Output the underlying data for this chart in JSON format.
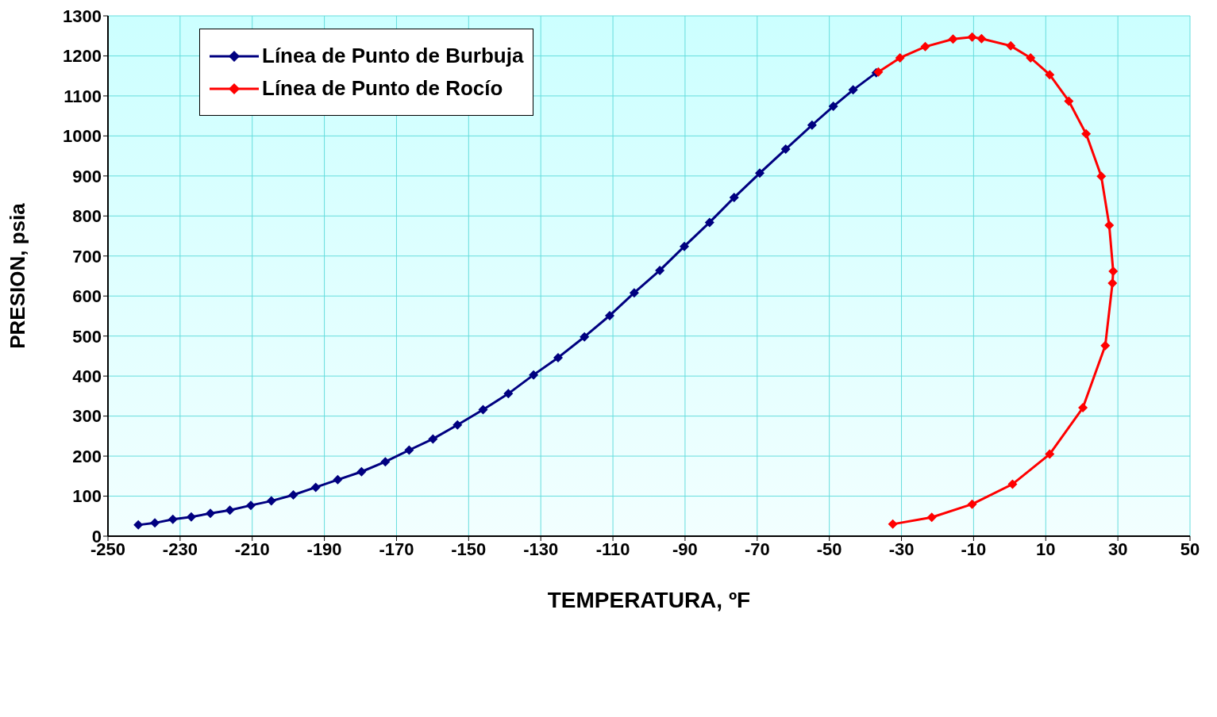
{
  "chart_data": {
    "type": "line",
    "xlabel": "TEMPERATURA, ºF",
    "ylabel": "PRESION, psia",
    "xlim": [
      -250,
      50
    ],
    "xticks": [
      -250,
      -230,
      -210,
      -190,
      -170,
      -150,
      -130,
      -110,
      -90,
      -70,
      -50,
      -30,
      -10,
      10,
      30,
      50
    ],
    "ylim": [
      0,
      1300
    ],
    "yticks": [
      0,
      100,
      200,
      300,
      400,
      500,
      600,
      700,
      800,
      900,
      1000,
      1100,
      1200,
      1300
    ],
    "grid": true,
    "legend": "top left",
    "marker": "diamond",
    "line_style": "solid",
    "series": [
      {
        "name": "Línea de Punto de Burbuja",
        "color": "#000080",
        "x": [
          -241.6,
          -237,
          -232,
          -226.9,
          -221.6,
          -216.2,
          -210.4,
          -204.7,
          -198.6,
          -192.4,
          -186.3,
          -179.7,
          -173.1,
          -166.5,
          -159.9,
          -153.1,
          -146,
          -139,
          -132,
          -125.2,
          -117.9,
          -110.9,
          -104.1,
          -97,
          -90.2,
          -83.2,
          -76.4,
          -69.3,
          -62.1,
          -54.8,
          -48.9,
          -43.4,
          -37
        ],
        "values": [
          28,
          33,
          42,
          48,
          57,
          65,
          77,
          88,
          103,
          122,
          141,
          161,
          186,
          215,
          243,
          278,
          316,
          356,
          403,
          446,
          498,
          551,
          608,
          664,
          724,
          784,
          846,
          907,
          967,
          1027,
          1074,
          1115,
          1158
        ]
      },
      {
        "name": "Línea de Punto de Rocío",
        "color": "#ff0000",
        "x": [
          -36.4,
          -30.4,
          -23.4,
          -15.7,
          -10.4,
          -7.8,
          0.3,
          5.8,
          11.1,
          16.4,
          21.2,
          25.4,
          27.6,
          28.7,
          28.5,
          26.5,
          20.3,
          11.1,
          0.8,
          -10.4,
          -21.6,
          -32.4
        ],
        "values": [
          1160,
          1195,
          1223,
          1242,
          1247,
          1243,
          1225,
          1195,
          1153,
          1087,
          1005,
          899,
          777,
          662,
          632,
          476,
          321,
          205,
          130,
          80,
          47,
          30
        ]
      }
    ]
  }
}
